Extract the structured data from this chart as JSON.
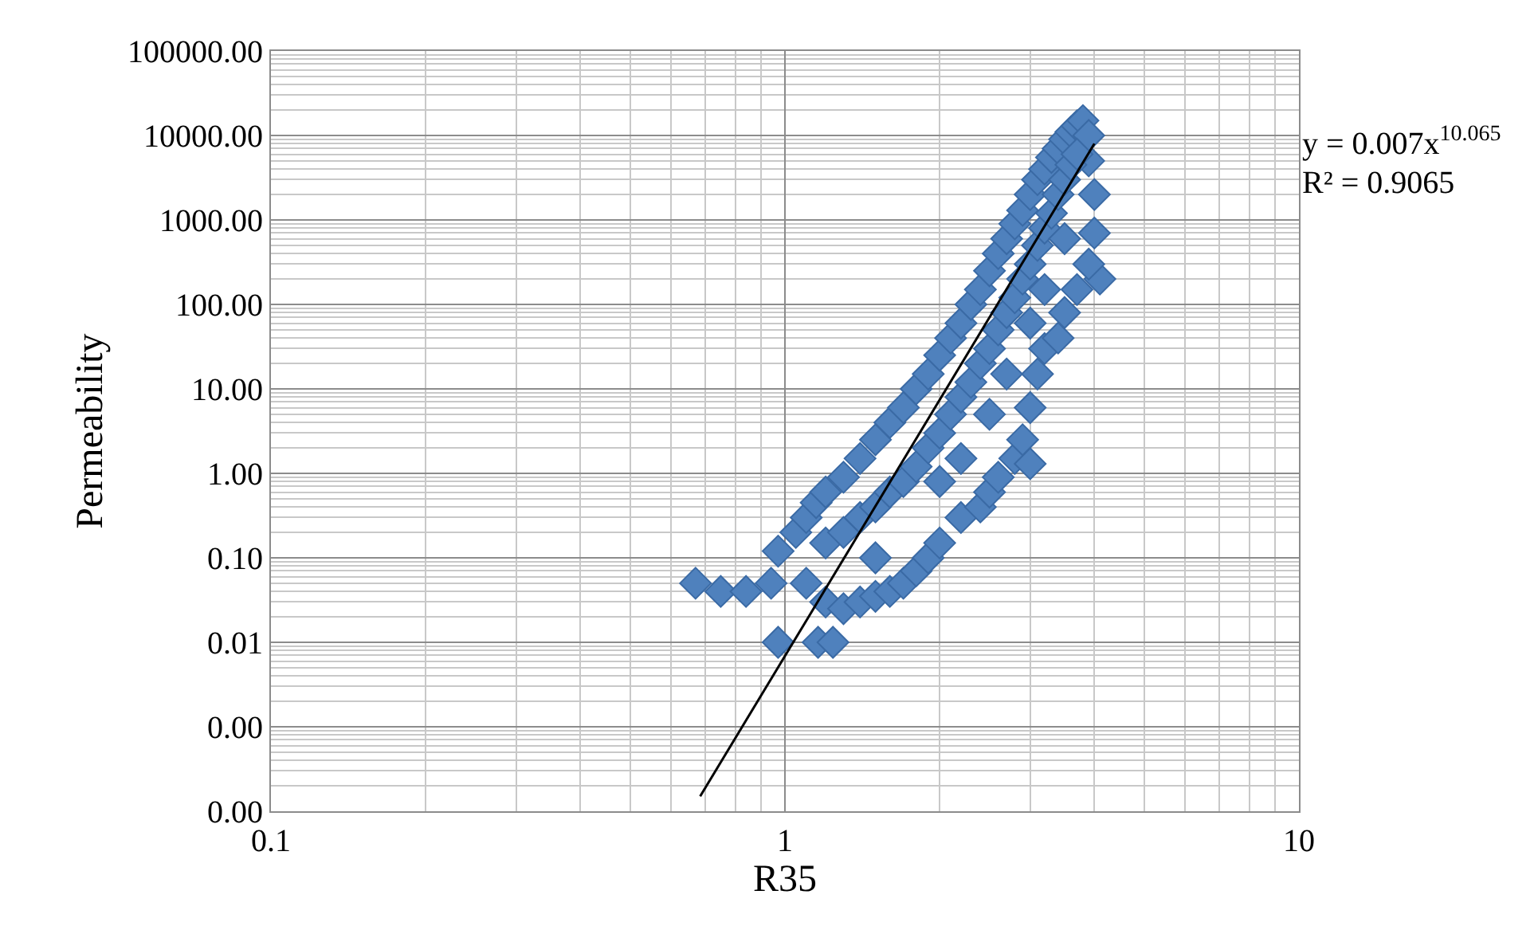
{
  "chart_data": {
    "type": "scatter",
    "xlabel": "R35",
    "ylabel": "Permeability",
    "annotations": [
      "y = 0.007x$^{10.065}$",
      "R² = 0.9065"
    ],
    "log": "xy",
    "grid": true,
    "marker": "diamond",
    "xlim": [
      0.1,
      10
    ],
    "xticks": [
      0.1,
      1,
      10
    ],
    "ylim": [
      0.0001,
      100000
    ],
    "yticks": [
      {
        "value": 0.0001,
        "label": "0.00"
      },
      {
        "value": 0.001,
        "label": "0.00"
      },
      {
        "value": 0.01,
        "label": "0.01"
      },
      {
        "value": 0.1,
        "label": "0.10"
      },
      {
        "value": 1,
        "label": "1.00"
      },
      {
        "value": 10,
        "label": "10.00"
      },
      {
        "value": 100,
        "label": "100.00"
      },
      {
        "value": 1000,
        "label": "1000.00"
      },
      {
        "value": 10000,
        "label": "10000.00"
      },
      {
        "value": 100000,
        "label": "100000.00"
      }
    ],
    "series": [
      {
        "color": "#4f81bd",
        "x": [
          0.67,
          0.75,
          0.84,
          0.94,
          0.97,
          0.97,
          1.16,
          1.24,
          1.05,
          1.1,
          1.15,
          1.2,
          1.3,
          1.4,
          1.5,
          1.6,
          1.7,
          1.8,
          1.9,
          2.0,
          2.1,
          2.2,
          2.3,
          2.4,
          2.5,
          2.6,
          2.7,
          2.8,
          2.9,
          3.0,
          3.1,
          3.2,
          3.3,
          3.4,
          3.5,
          3.6,
          3.7,
          3.8,
          1.1,
          1.2,
          1.3,
          1.4,
          1.5,
          1.6,
          1.7,
          1.8,
          1.9,
          2.0,
          2.2,
          2.4,
          2.5,
          2.6,
          2.8,
          3.0,
          2.9,
          3.0,
          3.1,
          3.2,
          3.4,
          3.5,
          3.7,
          4.1,
          3.9,
          4.0,
          4.0,
          3.9,
          3.9,
          1.2,
          1.3,
          1.4,
          1.5,
          1.6,
          1.7,
          1.8,
          1.9,
          2.0,
          2.1,
          2.2,
          2.3,
          2.4,
          2.5,
          2.6,
          2.7,
          2.8,
          2.9,
          3.0,
          3.1,
          3.2,
          3.3,
          3.4,
          3.5,
          3.6,
          3.7,
          1.5,
          2.0,
          2.5,
          3.0,
          3.5,
          2.2,
          2.7,
          3.2
        ],
        "values": [
          0.05,
          0.04,
          0.04,
          0.05,
          0.12,
          0.01,
          0.01,
          0.01,
          0.2,
          0.3,
          0.45,
          0.6,
          0.9,
          1.5,
          2.5,
          4,
          6,
          10,
          15,
          25,
          40,
          60,
          100,
          150,
          250,
          400,
          600,
          900,
          1300,
          2000,
          3000,
          4000,
          5500,
          7000,
          9000,
          11000,
          13000,
          15000,
          0.05,
          0.03,
          0.025,
          0.03,
          0.035,
          0.04,
          0.05,
          0.07,
          0.1,
          0.15,
          0.3,
          0.4,
          0.6,
          0.9,
          1.5,
          1.3,
          2.5,
          6,
          15,
          30,
          40,
          80,
          150,
          200,
          300,
          700,
          2000,
          5000,
          10000,
          0.15,
          0.2,
          0.3,
          0.4,
          0.6,
          0.8,
          1.2,
          2,
          3,
          5,
          8,
          12,
          20,
          30,
          50,
          80,
          120,
          200,
          300,
          500,
          800,
          1200,
          2000,
          3000,
          4500,
          6000,
          0.1,
          0.8,
          5,
          60,
          600,
          1.5,
          15,
          150
        ]
      },
      {
        "type": "line",
        "color": "#000000",
        "marker": "none",
        "x": [
          0.684,
          4.0
        ],
        "values": [
          0.00015,
          8000
        ]
      }
    ]
  }
}
